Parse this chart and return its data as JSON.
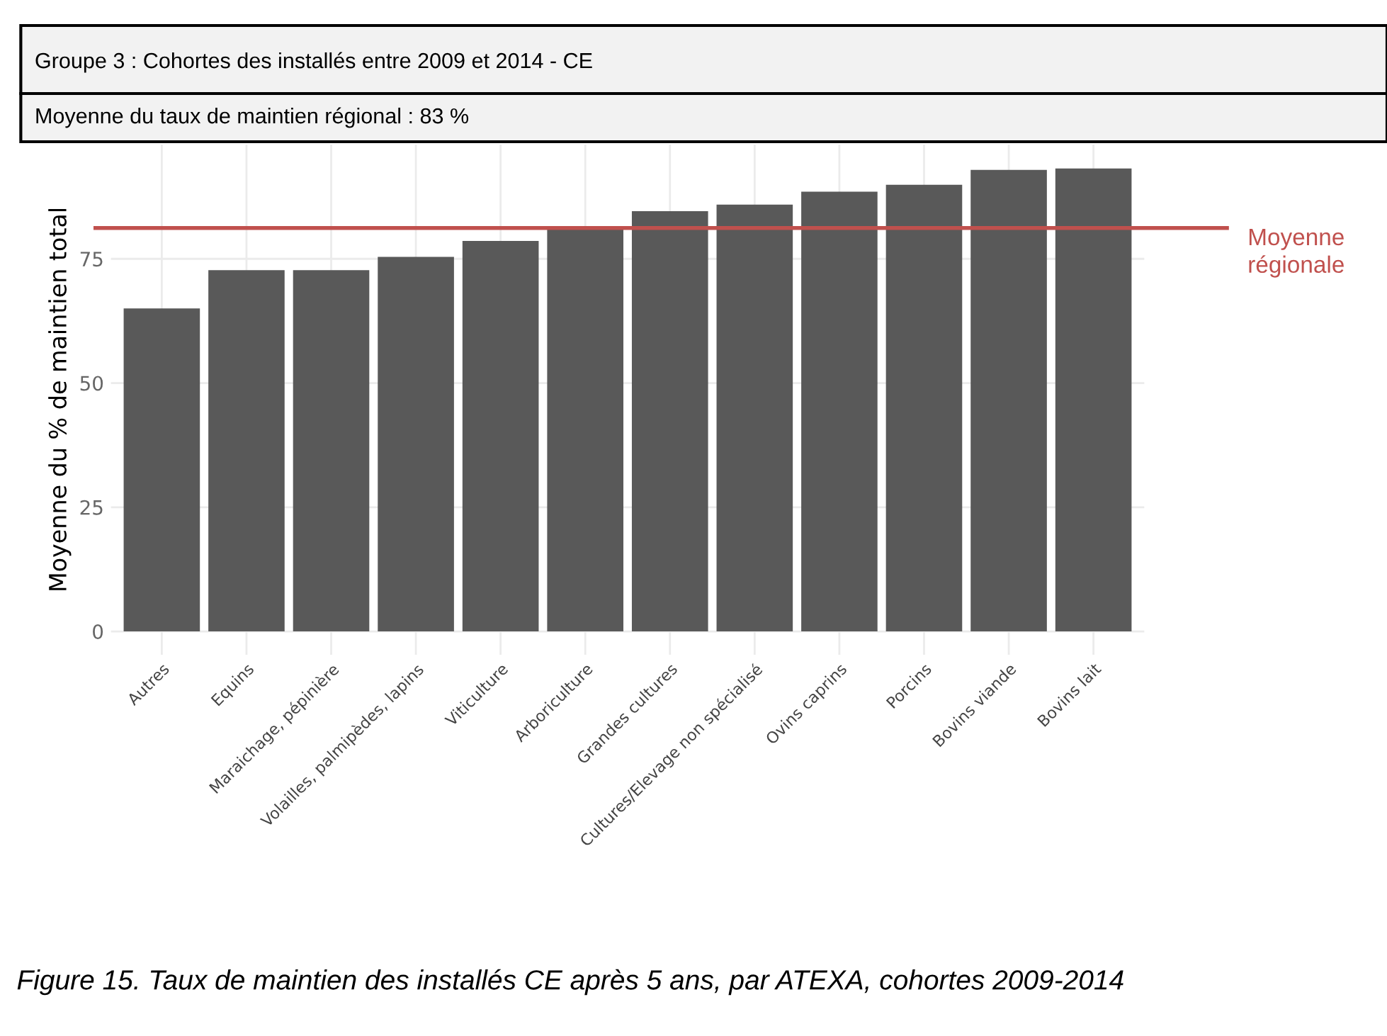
{
  "chart_data": {
    "type": "bar",
    "title": "Groupe 3 : Cohortes des installés entre 2009 et 2014 - CE",
    "subtitle": "Moyenne du taux de maintien régional : 83 %",
    "ylabel": "Moyenne du % de maintien total",
    "categories": [
      "Autres",
      "Equins",
      "Maraichage, pépinière",
      "Volailles, palmipèdes, lapins",
      "Viticulture",
      "Arboriculture",
      "Grandes cultures",
      "Cultures/Elevage non spécialisé",
      "Ovins caprins",
      "Porcins",
      "Bovins viande",
      "Bovins lait"
    ],
    "values": [
      65,
      72.7,
      72.7,
      75.4,
      78.6,
      81.6,
      84.6,
      85.9,
      88.5,
      89.9,
      92.9,
      93.2
    ],
    "color": "#595959",
    "ylim": [
      -4.7,
      98
    ],
    "yticks": [
      0,
      25,
      50,
      75
    ],
    "grid": true,
    "ref_lines": [
      {
        "axis": "y",
        "value": 81.2,
        "label": "Moyenne\nrégionale",
        "color": "#c0504d",
        "line_style": "solid"
      }
    ],
    "annotations": [
      "Figure 15. Taux de maintien des installés CE après 5 ans, par ATEXA, cohortes 2009-2014"
    ]
  }
}
